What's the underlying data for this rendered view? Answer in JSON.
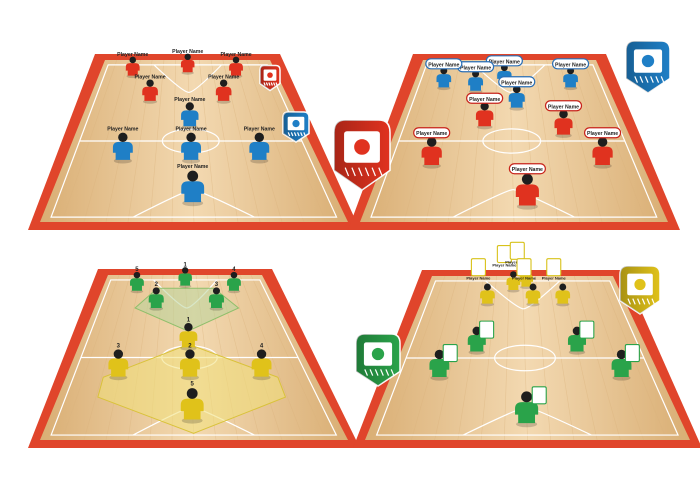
{
  "colors": {
    "court_border": "#e0452b",
    "floor_light": "#f3d7ad",
    "floor_dark": "#dcb47e",
    "line": "#ffffff",
    "red_team": "#e0321f",
    "blue_team": "#1f7fc6",
    "green_team": "#2aa34a",
    "yellow_team": "#e0c21a",
    "label_border_blue": "#2a6fb6",
    "label_border_red": "#c8241c",
    "label_border_green": "#2aa34a",
    "label_border_yellow": "#d8c21a"
  },
  "label_text": "Player Name",
  "panels": [
    {
      "name": "panel-top-left",
      "label_style": "plain",
      "teamA_color": "red",
      "teamB_color": "blue",
      "players": [
        {
          "team": "A",
          "label": "Player Name"
        },
        {
          "team": "A",
          "label": "Player Name"
        },
        {
          "team": "A",
          "label": "Player Name"
        },
        {
          "team": "A",
          "label": "Player Name"
        },
        {
          "team": "A",
          "label": "Player Name"
        },
        {
          "team": "B",
          "label": "Player Name"
        },
        {
          "team": "B",
          "label": "Player Name"
        },
        {
          "team": "B",
          "label": "Player Name"
        },
        {
          "team": "B",
          "label": "Player Name"
        },
        {
          "team": "B",
          "label": "Player Name"
        }
      ]
    },
    {
      "name": "panel-top-right",
      "label_style": "boxed",
      "teamA_color": "blue",
      "teamB_color": "red",
      "players": [
        {
          "team": "A",
          "label": "Player Name"
        },
        {
          "team": "A",
          "label": "Player Name"
        },
        {
          "team": "A",
          "label": "Player Name"
        },
        {
          "team": "A",
          "label": "Player Name"
        },
        {
          "team": "A",
          "label": "Player Name"
        },
        {
          "team": "B",
          "label": "Player Name"
        },
        {
          "team": "B",
          "label": "Player Name"
        },
        {
          "team": "B",
          "label": "Player Name"
        },
        {
          "team": "B",
          "label": "Player Name"
        },
        {
          "team": "B",
          "label": "Player Name"
        }
      ]
    },
    {
      "name": "panel-bottom-left",
      "label_style": "number",
      "teamA_color": "green",
      "teamB_color": "yellow",
      "players": [
        {
          "team": "A",
          "label": "5"
        },
        {
          "team": "A",
          "label": "1"
        },
        {
          "team": "A",
          "label": "4"
        },
        {
          "team": "A",
          "label": "2"
        },
        {
          "team": "A",
          "label": "3"
        },
        {
          "team": "B",
          "label": "1"
        },
        {
          "team": "B",
          "label": "3"
        },
        {
          "team": "B",
          "label": "2"
        },
        {
          "team": "B",
          "label": "4"
        },
        {
          "team": "B",
          "label": "5"
        }
      ]
    },
    {
      "name": "panel-bottom-right",
      "label_style": "photo",
      "teamA_color": "yellow",
      "teamB_color": "green",
      "players": [
        {
          "team": "A",
          "label": "Player Name"
        },
        {
          "team": "A",
          "label": "Player Name"
        },
        {
          "team": "A",
          "label": "Player Name"
        },
        {
          "team": "A",
          "label": "Player Name"
        },
        {
          "team": "A",
          "label": "Player Name"
        },
        {
          "team": "B",
          "label": ""
        },
        {
          "team": "B",
          "label": ""
        },
        {
          "team": "B",
          "label": ""
        },
        {
          "team": "B",
          "label": ""
        },
        {
          "team": "B",
          "label": ""
        }
      ]
    }
  ],
  "badges": [
    {
      "name": "badge-red-small",
      "color": "#e0321f",
      "icon": "shield-badge-icon"
    },
    {
      "name": "badge-blue-small",
      "color": "#1f7fc6",
      "icon": "shield-badge-icon"
    },
    {
      "name": "badge-red-large",
      "color": "#e0321f",
      "icon": "shield-badge-icon"
    },
    {
      "name": "badge-blue-large",
      "color": "#1f7fc6",
      "icon": "shield-badge-icon"
    },
    {
      "name": "badge-green",
      "color": "#2aa34a",
      "icon": "shield-badge-icon"
    },
    {
      "name": "badge-yellow",
      "color": "#e0c21a",
      "icon": "shield-badge-icon"
    }
  ]
}
